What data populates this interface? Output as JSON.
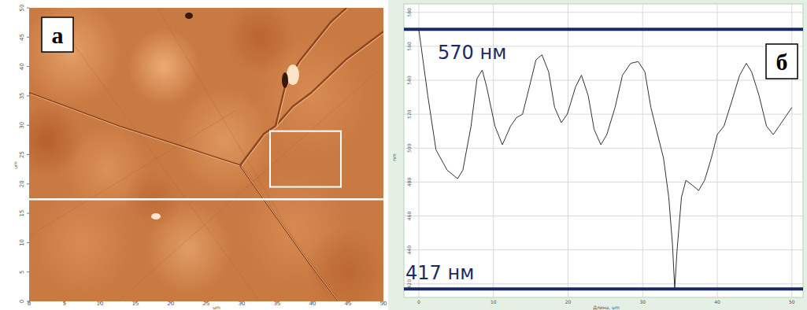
{
  "chart_data": [
    {
      "type": "image",
      "panel": "а",
      "xlabel": "um",
      "ylabel": "um",
      "xlim": [
        0,
        50
      ],
      "ylim": [
        0,
        50
      ],
      "xticks": [
        0,
        5,
        10,
        15,
        20,
        25,
        30,
        35,
        40,
        45,
        50
      ],
      "yticks": [
        0,
        5,
        10,
        15,
        20,
        25,
        30,
        35,
        40,
        45,
        50
      ],
      "profile_y": 17.4,
      "region": {
        "x": [
          34,
          44
        ],
        "y": [
          19.5,
          29
        ]
      },
      "color": "#ffffff"
    },
    {
      "type": "line",
      "panel": "б",
      "xlabel": "Длина, um",
      "ylabel": "nm",
      "x": [
        0,
        1.2,
        2.3,
        3.8,
        5.2,
        5.9,
        7.0,
        7.8,
        8.5,
        9.1,
        10.2,
        11.2,
        12.3,
        13.1,
        13.9,
        14.7,
        15.7,
        16.5,
        17.4,
        18.2,
        19.1,
        19.9,
        21.0,
        21.8,
        22.7,
        23.5,
        24.4,
        25.2,
        26.3,
        27.3,
        28.4,
        29.4,
        30.3,
        31.1,
        32.0,
        32.8,
        33.5,
        34.0,
        34.3,
        34.6,
        35.2,
        35.8,
        36.7,
        37.5,
        38.3,
        39.2,
        40.0,
        40.9,
        41.9,
        43.0,
        43.9,
        44.6,
        45.6,
        46.6,
        47.5,
        48.3,
        50.0
      ],
      "values": [
        570,
        531,
        499,
        487,
        482,
        487,
        513,
        541,
        546,
        536,
        513,
        502,
        513,
        518,
        520,
        534,
        552,
        555,
        545,
        524,
        515,
        520,
        536,
        543,
        531,
        511,
        502,
        508,
        524,
        543,
        550,
        551,
        545,
        524,
        508,
        494,
        471,
        443,
        417,
        439,
        471,
        481,
        478,
        475,
        481,
        494,
        508,
        513,
        527,
        543,
        550,
        545,
        531,
        513,
        508,
        513,
        524
      ],
      "color": "#333333",
      "xlim": [
        -2,
        51.5
      ],
      "ylim": [
        412,
        585
      ],
      "xticks": [
        0,
        10,
        20,
        30,
        40,
        50
      ],
      "yticks": [
        420,
        440,
        460,
        480,
        500,
        520,
        540,
        560,
        580
      ],
      "grid": true,
      "hlines": [
        {
          "value": 570,
          "label": "570 нм"
        },
        {
          "value": 417,
          "label": "417 нм"
        }
      ]
    }
  ]
}
